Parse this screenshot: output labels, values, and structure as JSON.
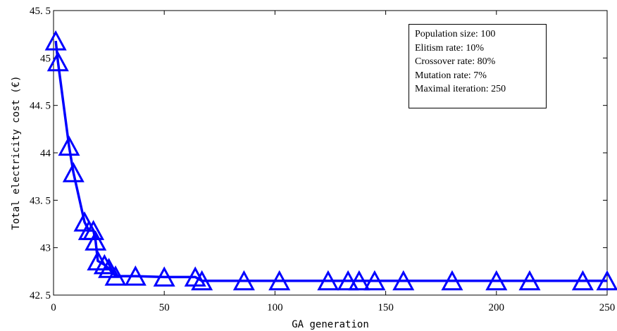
{
  "chart_data": {
    "type": "line",
    "xlabel": "GA generation",
    "ylabel": "Total electricity cost (€)",
    "xlim": [
      0,
      250
    ],
    "ylim": [
      42.5,
      45.5
    ],
    "x_ticks": [
      "0",
      "50",
      "100",
      "150",
      "200",
      "250"
    ],
    "y_ticks": [
      "42. 5",
      "43",
      "43. 5",
      "44",
      "44. 5",
      "45",
      "45. 5"
    ],
    "grid": false,
    "series": [
      {
        "color": "#0000ff",
        "marker": "triangle",
        "x": [
          1,
          2,
          7,
          9,
          14,
          16,
          18,
          19,
          20,
          23,
          25,
          28,
          37,
          50,
          64,
          67,
          86,
          102,
          124,
          133,
          138,
          145,
          158,
          180,
          200,
          215,
          239,
          250
        ],
        "y": [
          45.18,
          44.96,
          44.07,
          43.79,
          43.27,
          43.18,
          43.18,
          43.07,
          42.86,
          42.82,
          42.78,
          42.7,
          42.7,
          42.69,
          42.69,
          42.65,
          42.65,
          42.65,
          42.65,
          42.65,
          42.65,
          42.65,
          42.65,
          42.65,
          42.65,
          42.65,
          42.65,
          42.65
        ]
      }
    ],
    "annotation_lines": [
      "Population size: 100",
      "Elitism rate: 10%",
      "Crossover rate: 80%",
      "Mutation rate: 7%",
      "Maximal iteration: 250"
    ]
  }
}
